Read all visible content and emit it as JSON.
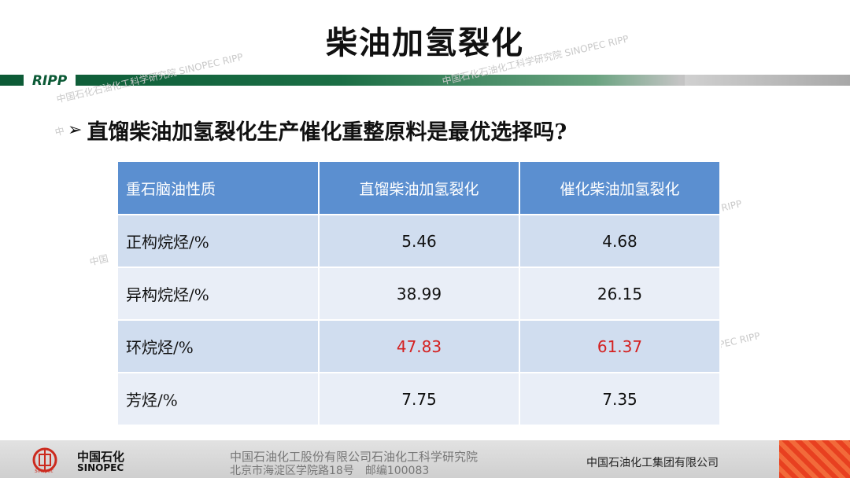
{
  "slide": {
    "title": "柴油加氢裂化",
    "logo": "RIPP",
    "question_bullet": "➢",
    "question": "直馏柴油加氢裂化生产催化重整原料是最优选择吗?"
  },
  "watermarks": [
    "中国石化石油化工科学研究院 SINOPEC RIPP",
    "中国石化石油化工科学研究院 SINOPEC RIPP",
    "RIPP",
    "中国",
    "PEC RIPP",
    "中"
  ],
  "table": {
    "headers": [
      "重石脑油性质",
      "直馏柴油加氢裂化",
      "催化柴油加氢裂化"
    ],
    "rows": [
      {
        "label": "正构烷烃/%",
        "straight": "5.46",
        "catalytic": "4.68",
        "highlight": false
      },
      {
        "label": "异构烷烃/%",
        "straight": "38.99",
        "catalytic": "26.15",
        "highlight": false
      },
      {
        "label": "环烷烃/%",
        "straight": "47.83",
        "catalytic": "61.37",
        "highlight": true
      },
      {
        "label": "芳烃/%",
        "straight": "7.75",
        "catalytic": "7.35",
        "highlight": false
      }
    ],
    "header_color": "#5b8fd0",
    "highlight_color": "#d42020"
  },
  "footer": {
    "brand_cn": "中国石化",
    "brand_en": "SINOPEC",
    "address_line1": "中国石油化工股份有限公司石油化工科学研究院",
    "address_line2": "北京市海淀区学院路18号　邮编100083",
    "group": "中国石油化工集团有限公司"
  }
}
